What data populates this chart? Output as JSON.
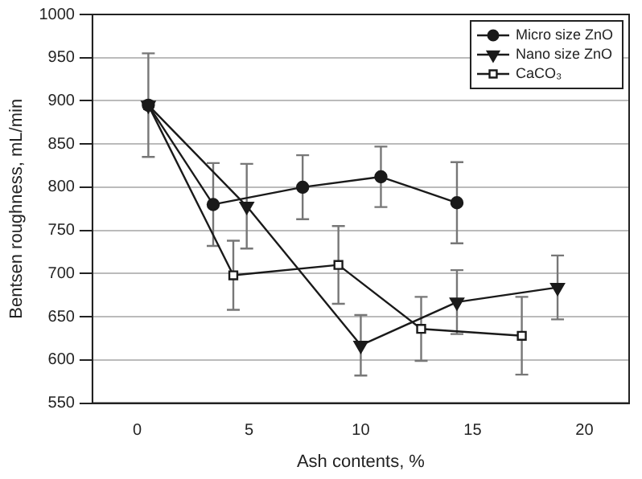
{
  "chart_data": {
    "type": "line",
    "xlabel": "Ash contents, %",
    "ylabel": "Bentsen roughness, mL/min",
    "xlim": [
      -2,
      22
    ],
    "xticks": [
      0,
      5,
      10,
      15,
      20
    ],
    "ylim": [
      550,
      1000
    ],
    "yticks": [
      550,
      600,
      650,
      700,
      750,
      800,
      850,
      900,
      950,
      1000
    ],
    "grid": "y",
    "legend": "top right",
    "line_style": "solid",
    "series": [
      {
        "name": "Micro size ZnO",
        "color": "#1a1a1a",
        "marker": "circle",
        "x": [
          0.5,
          3.4,
          7.4,
          10.9,
          14.3
        ],
        "values": [
          895,
          780,
          800,
          812,
          782
        ],
        "errors": [
          60,
          48,
          37,
          35,
          47
        ]
      },
      {
        "name": "Nano size ZnO",
        "color": "#1a1a1a",
        "marker": "triangle",
        "x": [
          0.5,
          4.9,
          10,
          14.3,
          18.8
        ],
        "values": [
          895,
          778,
          617,
          667,
          684
        ],
        "errors": [
          null,
          49,
          35,
          37,
          37
        ]
      },
      {
        "name": "CaCO₃",
        "color": "#1a1a1a",
        "marker": "square",
        "x": [
          0.5,
          4.3,
          9,
          12.7,
          17.2
        ],
        "values": [
          895,
          698,
          710,
          636,
          628
        ],
        "errors": [
          null,
          40,
          45,
          37,
          45
        ]
      }
    ]
  }
}
